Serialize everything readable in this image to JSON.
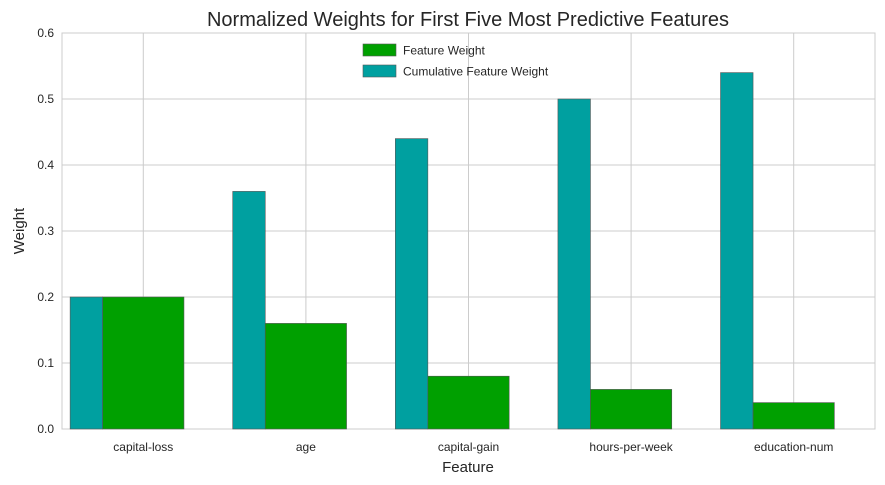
{
  "chart_data": {
    "type": "bar",
    "title": "Normalized Weights for First Five Most Predictive Features",
    "xlabel": "Feature",
    "ylabel": "Weight",
    "categories": [
      "capital-loss",
      "age",
      "capital-gain",
      "hours-per-week",
      "education-num"
    ],
    "series": [
      {
        "name": "Feature Weight",
        "values": [
          0.2,
          0.16,
          0.08,
          0.06,
          0.04
        ],
        "color": "#00a000"
      },
      {
        "name": "Cumulative Feature Weight",
        "values": [
          0.2,
          0.36,
          0.44,
          0.5,
          0.54
        ],
        "color": "#00a0a0"
      }
    ],
    "ylim": [
      0,
      0.6
    ],
    "yticks": [
      "0.0",
      "0.1",
      "0.2",
      "0.3",
      "0.4",
      "0.5",
      "0.6"
    ],
    "grid": true,
    "legend_position": "top-center"
  }
}
